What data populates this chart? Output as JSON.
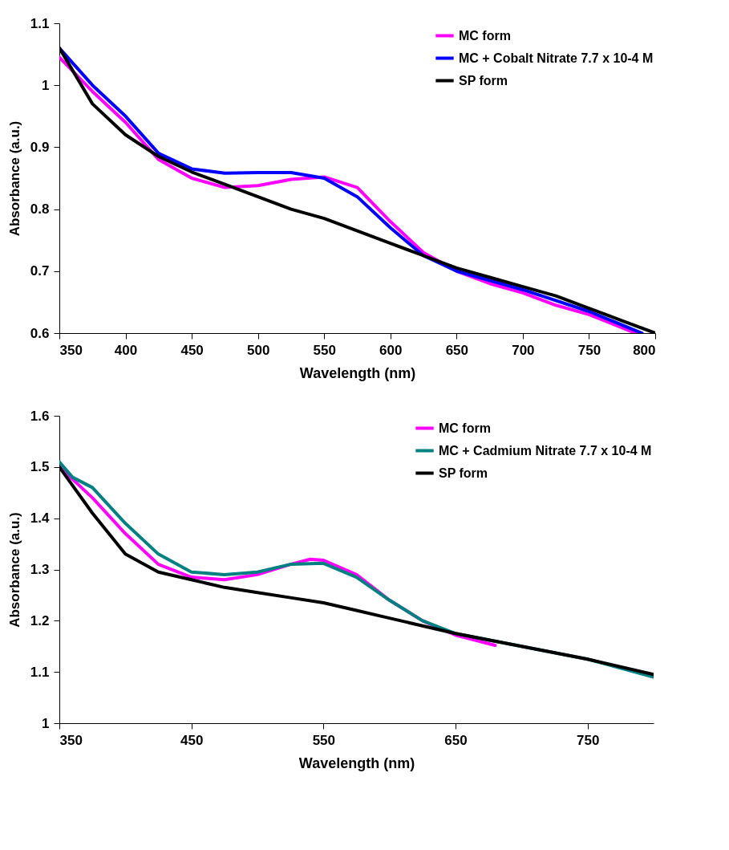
{
  "chart_data": [
    {
      "type": "line",
      "xlabel": "Wavelength (nm)",
      "ylabel": "Absorbance (a.u.)",
      "xlim": [
        350,
        800
      ],
      "xticks": [
        350,
        400,
        450,
        500,
        550,
        600,
        650,
        700,
        750,
        800
      ],
      "ylim": [
        0.6,
        1.1
      ],
      "yticks": [
        0.6,
        0.7,
        0.8,
        0.9,
        1,
        1.1
      ],
      "grid": false,
      "legend": "top right",
      "series": [
        {
          "name": "MC form",
          "color": "#ff00ff",
          "x": [
            350,
            375,
            400,
            425,
            450,
            475,
            500,
            525,
            550,
            575,
            600,
            625,
            650,
            675,
            700,
            725,
            750,
            785
          ],
          "values": [
            1.045,
            0.99,
            0.94,
            0.88,
            0.85,
            0.835,
            0.838,
            0.848,
            0.852,
            0.835,
            0.78,
            0.73,
            0.7,
            0.68,
            0.665,
            0.645,
            0.63,
            0.6
          ]
        },
        {
          "name": "MC + Cobalt Nitrate 7.7 x 10-4 M",
          "color": "#0000ff",
          "x": [
            350,
            375,
            400,
            425,
            450,
            475,
            500,
            525,
            550,
            575,
            600,
            625,
            650,
            700,
            750,
            790
          ],
          "values": [
            1.06,
            1.0,
            0.95,
            0.89,
            0.865,
            0.858,
            0.859,
            0.859,
            0.85,
            0.82,
            0.77,
            0.725,
            0.7,
            0.67,
            0.635,
            0.6
          ]
        },
        {
          "name": "SP form",
          "color": "#000000",
          "x": [
            350,
            375,
            400,
            425,
            450,
            475,
            500,
            525,
            550,
            575,
            600,
            625,
            650,
            675,
            700,
            725,
            750,
            775,
            800
          ],
          "values": [
            1.06,
            0.97,
            0.92,
            0.885,
            0.86,
            0.84,
            0.82,
            0.8,
            0.785,
            0.765,
            0.745,
            0.725,
            0.705,
            0.69,
            0.675,
            0.66,
            0.64,
            0.62,
            0.6
          ]
        }
      ]
    },
    {
      "type": "line",
      "xlabel": "Wavelength (nm)",
      "ylabel": "Absorbance (a.u.)",
      "xlim": [
        350,
        800
      ],
      "xticks": [
        350,
        450,
        550,
        650,
        750
      ],
      "ylim": [
        1,
        1.6
      ],
      "yticks": [
        1,
        1.1,
        1.2,
        1.3,
        1.4,
        1.5,
        1.6
      ],
      "grid": false,
      "legend": "top right",
      "series": [
        {
          "name": "MC form",
          "color": "#ff00ff",
          "x": [
            350,
            375,
            400,
            425,
            450,
            475,
            500,
            525,
            540,
            550,
            575,
            600,
            625,
            650,
            680
          ],
          "values": [
            1.5,
            1.44,
            1.37,
            1.31,
            1.285,
            1.28,
            1.29,
            1.31,
            1.32,
            1.318,
            1.29,
            1.24,
            1.2,
            1.172,
            1.152
          ]
        },
        {
          "name": "MC + Cadmium Nitrate 7.7 x 10-4 M",
          "color": "#008080",
          "x": [
            350,
            360,
            375,
            400,
            425,
            450,
            475,
            500,
            525,
            550,
            575,
            600,
            625,
            650,
            700,
            750,
            800
          ],
          "values": [
            1.51,
            1.48,
            1.46,
            1.39,
            1.33,
            1.295,
            1.29,
            1.295,
            1.31,
            1.312,
            1.285,
            1.24,
            1.2,
            1.175,
            1.15,
            1.125,
            1.09
          ]
        },
        {
          "name": "SP form",
          "color": "#000000",
          "x": [
            350,
            375,
            400,
            425,
            450,
            475,
            500,
            525,
            550,
            575,
            600,
            625,
            650,
            700,
            750,
            800
          ],
          "values": [
            1.5,
            1.41,
            1.33,
            1.295,
            1.28,
            1.265,
            1.255,
            1.245,
            1.235,
            1.22,
            1.205,
            1.19,
            1.175,
            1.15,
            1.125,
            1.095
          ]
        }
      ]
    }
  ]
}
